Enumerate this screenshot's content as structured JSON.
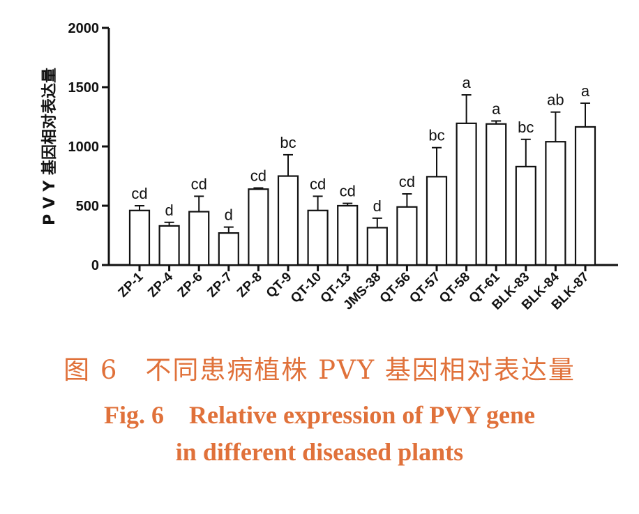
{
  "chart_data": {
    "type": "bar",
    "ylabel": "P V Y 基因相对表达量",
    "ylim": [
      0,
      2000
    ],
    "yticks": [
      0,
      500,
      1000,
      1500,
      2000
    ],
    "categories": [
      "ZP-1",
      "ZP-4",
      "ZP-6",
      "ZP-7",
      "ZP-8",
      "QT-9",
      "QT-10",
      "QT-13",
      "JMS-38",
      "QT-56",
      "QT-57",
      "QT-58",
      "QT-61",
      "BLK-83",
      "BLK-84",
      "BLK-87"
    ],
    "values": [
      460,
      330,
      450,
      270,
      640,
      750,
      460,
      500,
      315,
      490,
      745,
      1195,
      1190,
      830,
      1040,
      1165
    ],
    "errors": [
      40,
      30,
      130,
      50,
      10,
      180,
      120,
      20,
      80,
      110,
      245,
      240,
      25,
      230,
      250,
      200
    ],
    "letters": [
      "cd",
      "d",
      "cd",
      "d",
      "cd",
      "bc",
      "cd",
      "cd",
      "d",
      "cd",
      "bc",
      "a",
      "a",
      "bc",
      "ab",
      "a"
    ],
    "bar_fill": "#ffffff",
    "bar_stroke": "#111111",
    "grid": false
  },
  "caption": {
    "cn": "图 6　不同患病植株 PVY 基因相对表达量",
    "en_line1": "Fig. 6　Relative expression of PVY gene",
    "en_line2": "in different diseased plants",
    "color": "#e0713a"
  }
}
